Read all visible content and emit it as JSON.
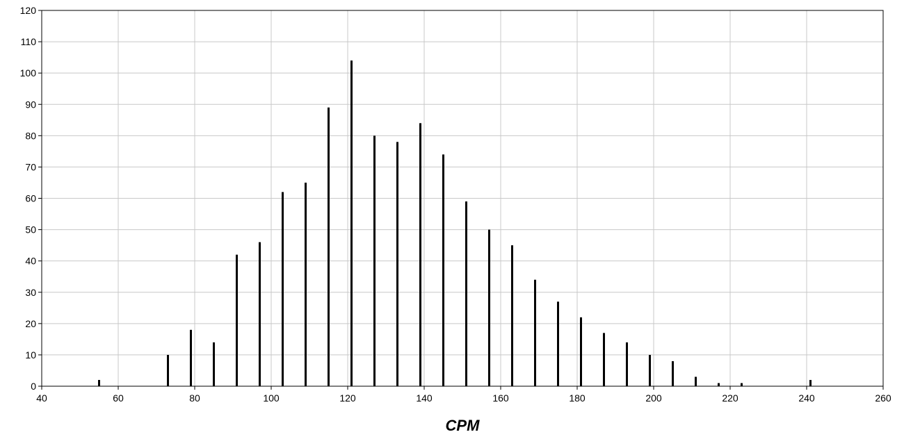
{
  "chart_data": {
    "type": "bar",
    "title": "",
    "xlabel": "CPM",
    "ylabel": "",
    "xlim": [
      40,
      260
    ],
    "ylim": [
      0,
      120
    ],
    "x_ticks": [
      40,
      60,
      80,
      100,
      120,
      140,
      160,
      180,
      200,
      220,
      240,
      260
    ],
    "y_ticks": [
      0,
      10,
      20,
      30,
      40,
      50,
      60,
      70,
      80,
      90,
      100,
      110,
      120
    ],
    "grid": true,
    "bar_color": "#000000",
    "grid_color": "#c8c8c8",
    "x": [
      55,
      73,
      79,
      85,
      91,
      97,
      103,
      109,
      115,
      121,
      127,
      133,
      139,
      145,
      151,
      157,
      163,
      169,
      175,
      181,
      187,
      193,
      199,
      205,
      211,
      217,
      223,
      241
    ],
    "values": [
      2,
      10,
      18,
      14,
      42,
      46,
      62,
      65,
      89,
      104,
      80,
      78,
      84,
      74,
      59,
      50,
      45,
      34,
      27,
      22,
      17,
      14,
      10,
      8,
      3,
      1,
      1,
      2
    ]
  }
}
